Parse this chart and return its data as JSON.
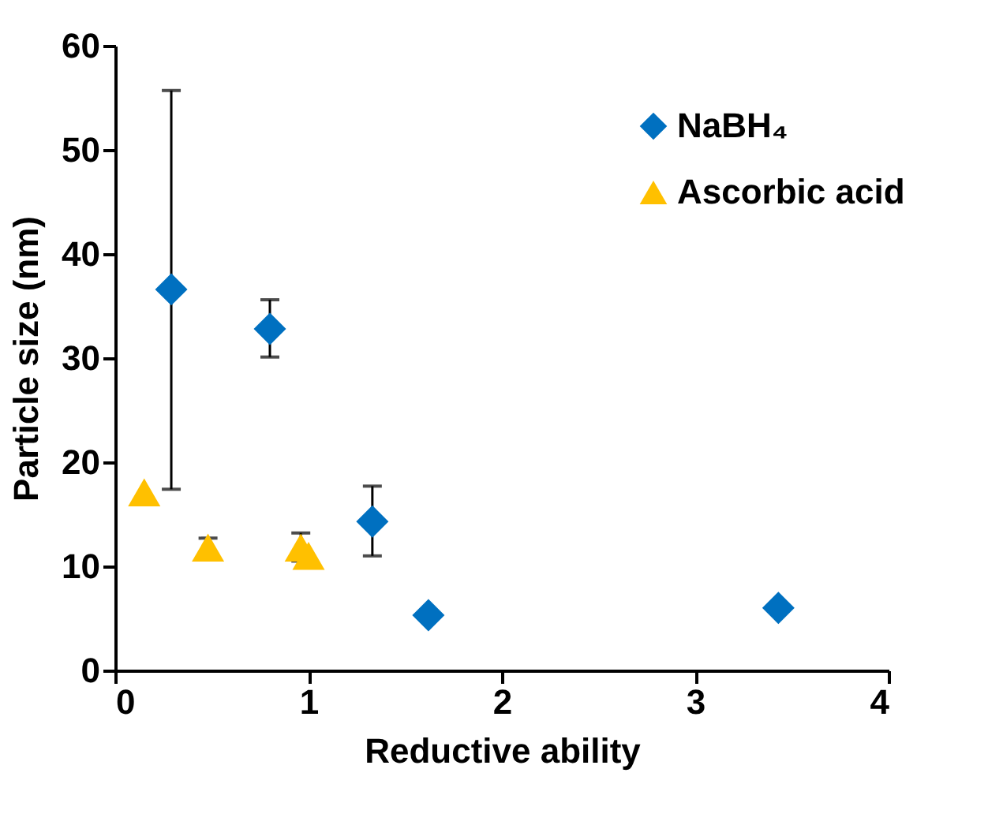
{
  "chart_data": {
    "type": "scatter",
    "xlabel": "Reductive ability",
    "ylabel": "Particle size (nm)",
    "xlim": [
      0,
      4
    ],
    "xticks": [
      0,
      1,
      2,
      3,
      4
    ],
    "ylim": [
      0,
      60
    ],
    "yticks": [
      0,
      10,
      20,
      30,
      40,
      50,
      60
    ],
    "grid": false,
    "legend": "right",
    "series": [
      {
        "name": "NaBH₄",
        "color": "#0070c0",
        "marker": "diamond",
        "x": [
          0.29,
          0.8,
          1.33,
          1.62,
          3.43
        ],
        "values": [
          36.6,
          32.8,
          14.3,
          5.3,
          6.0
        ],
        "errors": [
          [
            17.4,
            55.7
          ],
          [
            30.1,
            35.6
          ],
          [
            11.0,
            17.7
          ],
          null,
          null
        ]
      },
      {
        "name": "Ascorbic acid",
        "color": "#ffc000",
        "marker": "triangle",
        "x": [
          0.15,
          0.48,
          0.96,
          1.0
        ],
        "values": [
          17.1,
          11.8,
          11.8,
          11.0
        ],
        "errors": [
          null,
          [
            10.9,
            12.7
          ],
          [
            10.5,
            13.2
          ],
          null
        ]
      }
    ]
  }
}
